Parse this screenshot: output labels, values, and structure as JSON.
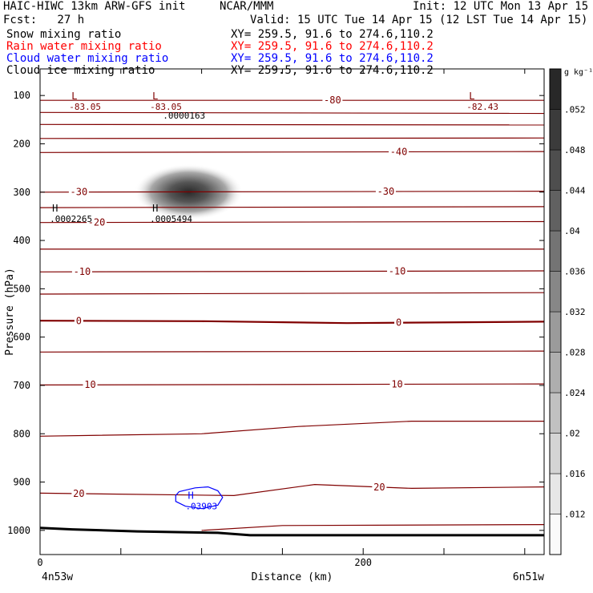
{
  "header": {
    "title": "HAIC-HIWC 13km ARW-GFS init",
    "org": "NCAR/MMM",
    "init": "Init: 12 UTC Mon 13 Apr 15",
    "fcst": "Fcst:   27 h",
    "valid": "Valid: 15 UTC Tue 14 Apr 15 (12 LST Tue 14 Apr 15)"
  },
  "fields": [
    {
      "label": "Snow mixing ratio",
      "xy": "XY= 259.5, 91.6 to 274.6,110.2",
      "color": "#000000"
    },
    {
      "label": "Rain water mixing ratio",
      "xy": "XY= 259.5, 91.6 to 274.6,110.2",
      "color": "#ff0000"
    },
    {
      "label": "Cloud water mixing ratio",
      "xy": "XY= 259.5, 91.6 to 274.6,110.2",
      "color": "#0000ff"
    },
    {
      "label": "Cloud ice mixing ratio",
      "xy": "XY= 259.5, 91.6 to 274.6,110.2",
      "color": "#000000"
    }
  ],
  "chart_data": {
    "type": "heatmap",
    "xlabel": "Distance (km)",
    "ylabel": "Pressure (hPa)",
    "xlim": [
      0,
      312
    ],
    "ylim": [
      1050,
      45
    ],
    "xticks": [
      0,
      50,
      100,
      150,
      200,
      250,
      300
    ],
    "xtick_labels": [
      "0",
      "",
      "",
      "",
      "200",
      "",
      ""
    ],
    "yticks": [
      100,
      200,
      300,
      400,
      500,
      600,
      700,
      800,
      900,
      1000
    ],
    "x_endpoints": {
      "left": "4n53w",
      "right": "6n51w"
    },
    "colorbar": {
      "units": "g kg⁻¹",
      "min": 0.008,
      "max": 0.056,
      "tick_values": [
        0.012,
        0.016,
        0.02,
        0.024,
        0.028,
        0.032,
        0.036,
        0.04,
        0.044,
        0.048,
        0.052
      ],
      "tick_labels": [
        ".012",
        ".016",
        ".02",
        ".024",
        ".028",
        ".032",
        ".036",
        ".04",
        ".044",
        ".048",
        ".052"
      ]
    },
    "temperature_contour_color": "#800000",
    "temperature_contours": [
      {
        "value": -80,
        "label": "-80",
        "label_x": 181,
        "pts": [
          [
            0,
            110
          ],
          [
            312,
            110
          ]
        ]
      },
      {
        "value": -70,
        "pts": [
          [
            0,
            135
          ],
          [
            312,
            137
          ]
        ]
      },
      {
        "value": -60,
        "pts": [
          [
            0,
            160
          ],
          [
            312,
            161
          ]
        ]
      },
      {
        "value": -50,
        "pts": [
          [
            0,
            189
          ],
          [
            312,
            188
          ]
        ]
      },
      {
        "value": -40,
        "label": "-40",
        "label_x": 222,
        "pts": [
          [
            0,
            218
          ],
          [
            312,
            216
          ]
        ]
      },
      {
        "value": -30,
        "label": "-30",
        "label_x": 24,
        "label_x2": 214,
        "pts": [
          [
            0,
            300
          ],
          [
            312,
            298
          ]
        ]
      },
      {
        "value": -25,
        "pts": [
          [
            0,
            332
          ],
          [
            312,
            330
          ]
        ]
      },
      {
        "value": -20,
        "label": "-20",
        "label_x": 35,
        "pts": [
          [
            0,
            363
          ],
          [
            312,
            361
          ]
        ]
      },
      {
        "value": -15,
        "pts": [
          [
            0,
            418
          ],
          [
            312,
            418
          ]
        ]
      },
      {
        "value": -10,
        "label": "-10",
        "label_x": 26,
        "label_x2": 221,
        "pts": [
          [
            0,
            465
          ],
          [
            312,
            463
          ]
        ]
      },
      {
        "value": -5,
        "pts": [
          [
            0,
            511
          ],
          [
            312,
            508
          ]
        ]
      },
      {
        "value": 0,
        "label": "0",
        "label_x": 24,
        "label_x2": 222,
        "bold": true,
        "pts": [
          [
            0,
            566
          ],
          [
            100,
            567
          ],
          [
            190,
            571
          ],
          [
            312,
            568
          ]
        ]
      },
      {
        "value": 5,
        "pts": [
          [
            0,
            631
          ],
          [
            312,
            629
          ]
        ]
      },
      {
        "value": 10,
        "label": "10",
        "label_x": 31,
        "label_x2": 221,
        "pts": [
          [
            0,
            699
          ],
          [
            312,
            697
          ]
        ]
      },
      {
        "value": 15,
        "pts": [
          [
            0,
            805
          ],
          [
            100,
            800
          ],
          [
            160,
            785
          ],
          [
            230,
            774
          ],
          [
            312,
            774
          ]
        ]
      },
      {
        "value": 20,
        "label": "20",
        "label_x": 24,
        "label_x2": 210,
        "pts": [
          [
            0,
            923
          ],
          [
            120,
            928
          ],
          [
            170,
            905
          ],
          [
            230,
            913
          ],
          [
            312,
            910
          ]
        ]
      },
      {
        "value": 25,
        "pts": [
          [
            100,
            1000
          ],
          [
            150,
            990
          ],
          [
            312,
            988
          ]
        ]
      }
    ],
    "terrain": [
      [
        0,
        995
      ],
      [
        20,
        998
      ],
      [
        60,
        1002
      ],
      [
        110,
        1005
      ],
      [
        130,
        1010
      ],
      [
        312,
        1010
      ]
    ],
    "snow_max": {
      "x": 92,
      "p": 300,
      "value": 0.052
    },
    "extrema": [
      {
        "mark": "L",
        "value": "-83.05",
        "x": 18,
        "p": 108,
        "color": "#800000"
      },
      {
        "mark": "L",
        "value": "-83.05",
        "x": 68,
        "p": 108,
        "color": "#800000"
      },
      {
        "mark": "L",
        "value": "-82.43",
        "x": 264,
        "p": 108,
        "color": "#800000"
      },
      {
        "value": ".0000163",
        "x": 76,
        "p": 126,
        "color": "#000000"
      },
      {
        "mark": "H",
        "value": ".0002265",
        "x": 6,
        "p": 340,
        "color": "#000000"
      },
      {
        "mark": "H",
        "value": ".0005494",
        "x": 68,
        "p": 340,
        "color": "#000000"
      },
      {
        "mark": "H",
        "value": ".03903",
        "x": 90,
        "p": 935,
        "color": "#0000ff"
      }
    ],
    "cloud_water_contour": {
      "color": "#0000ff",
      "pts": [
        [
          86,
          920
        ],
        [
          96,
          912
        ],
        [
          104,
          910
        ],
        [
          110,
          918
        ],
        [
          113,
          932
        ],
        [
          110,
          948
        ],
        [
          100,
          955
        ],
        [
          90,
          950
        ],
        [
          84,
          940
        ],
        [
          84,
          928
        ],
        [
          86,
          920
        ]
      ]
    }
  }
}
